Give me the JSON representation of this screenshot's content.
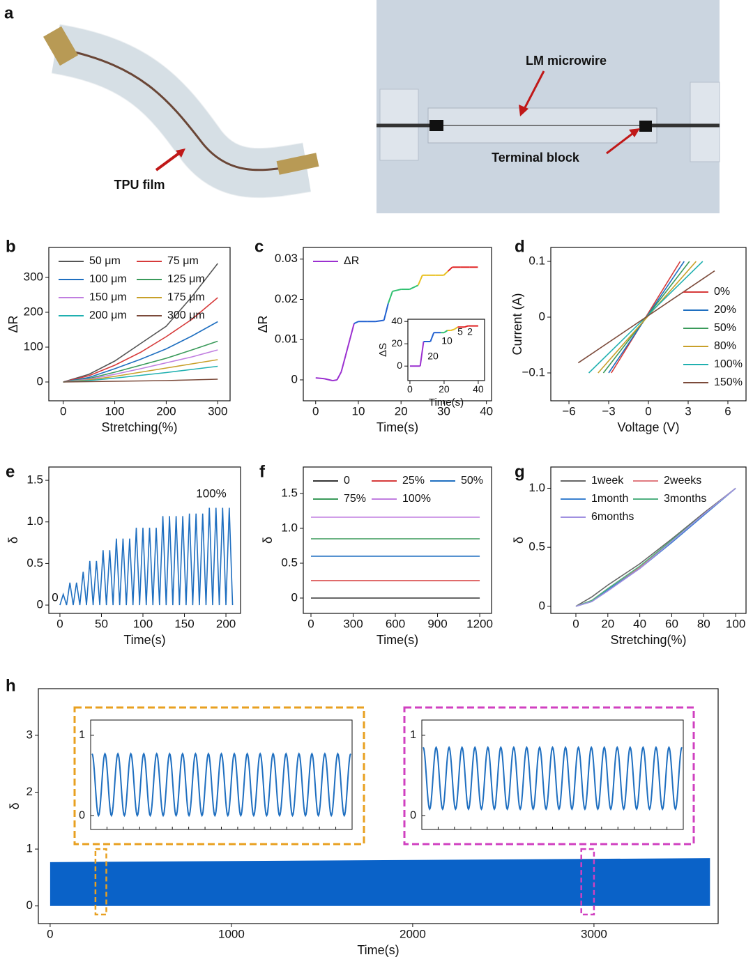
{
  "panel_a": {
    "label": "a",
    "film_label": "TPU film",
    "wire_label": "LM microwire",
    "block_label": "Terminal block"
  },
  "chart_data": [
    {
      "panel": "b",
      "type": "line",
      "xlabel": "Stretching(%)",
      "ylabel": "ΔR",
      "x": [
        0,
        50,
        100,
        150,
        200,
        250,
        300
      ],
      "xlim": [
        -28,
        324
      ],
      "ylim": [
        -54,
        386
      ],
      "xticks": [
        0,
        100,
        200,
        300
      ],
      "yticks": [
        0,
        100,
        200,
        300
      ],
      "legend": "upper left",
      "legend_columns": 2,
      "series": [
        {
          "name": "50 μm",
          "color": "#555555",
          "values": [
            0,
            22,
            60,
            110,
            160,
            245,
            340
          ]
        },
        {
          "name": "75 μm",
          "color": "#d63a3a",
          "values": [
            0,
            18,
            48,
            85,
            130,
            180,
            242
          ]
        },
        {
          "name": "100 μm",
          "color": "#1f6fc0",
          "values": [
            0,
            13,
            38,
            65,
            95,
            132,
            173
          ]
        },
        {
          "name": "125 μm",
          "color": "#3a9a5a",
          "values": [
            0,
            10,
            28,
            48,
            68,
            92,
            117
          ]
        },
        {
          "name": "150 μm",
          "color": "#c07ee0",
          "values": [
            0,
            8,
            22,
            38,
            55,
            72,
            92
          ]
        },
        {
          "name": "175 μm",
          "color": "#c8a02a",
          "values": [
            0,
            6,
            16,
            28,
            40,
            52,
            64
          ]
        },
        {
          "name": "200 μm",
          "color": "#20b0b0",
          "values": [
            0,
            4,
            11,
            19,
            27,
            36,
            45
          ]
        },
        {
          "name": "300 μm",
          "color": "#7b4a3a",
          "values": [
            0,
            1,
            2,
            3,
            4,
            6,
            8
          ]
        }
      ]
    },
    {
      "panel": "c",
      "type": "line",
      "xlabel": "Time(s)",
      "ylabel": "ΔR",
      "x": [
        0,
        2,
        4,
        5,
        6,
        7,
        8,
        9,
        10,
        12,
        14,
        16,
        17,
        18,
        20,
        22,
        24,
        25,
        26,
        28,
        30,
        31,
        32,
        34,
        36,
        38
      ],
      "xlim": [
        -2.9,
        41.2
      ],
      "ylim": [
        -0.0052,
        0.0329
      ],
      "xticks": [
        0,
        10,
        20,
        30,
        40
      ],
      "yticks": [
        0,
        0.01,
        0.02,
        0.03
      ],
      "legend": "upper left",
      "legend_columns": 1,
      "series": [
        {
          "name": "ΔR",
          "color": "#9b30d0",
          "values": [
            0.0005,
            0.0003,
            -0.0002,
            0,
            0.002,
            0.006,
            0.01,
            0.014,
            0.0145,
            0.0145,
            0.0145,
            0.0148,
            0.019,
            0.022,
            0.0225,
            0.0225,
            0.0235,
            0.026,
            0.026,
            0.026,
            0.026,
            0.027,
            0.028,
            0.028,
            0.028,
            0.028
          ],
          "colors": [
            "#9b30d0",
            "#9b30d0",
            "#9b30d0",
            "#9b30d0",
            "#9b30d0",
            "#9b30d0",
            "#9b30d0",
            "#9b30d0",
            "#2060d0",
            "#2060d0",
            "#2060d0",
            "#2060d0",
            "#2060d0",
            "#30c070",
            "#30c070",
            "#30c070",
            "#30c070",
            "#e8c020",
            "#e8c020",
            "#e8c020",
            "#e8c020",
            "#e8c020",
            "#e02020",
            "#e02020",
            "#e02020",
            "#e02020"
          ]
        }
      ],
      "inset": {
        "type": "line",
        "xlabel": "Time(s)",
        "ylabel": "ΔS",
        "x": [
          0,
          6,
          8,
          12,
          14,
          18,
          20,
          22,
          24,
          26,
          28,
          32,
          34,
          40
        ],
        "xlim": [
          -1.2,
          43.7
        ],
        "ylim": [
          -13,
          42
        ],
        "xticks": [
          0,
          20,
          40
        ],
        "yticks": [
          0,
          20,
          40
        ],
        "annotations": [
          "20",
          "10",
          "5",
          "2"
        ],
        "series": [
          {
            "color": "#9b30d0",
            "values": [
              0,
              0,
              22,
              22,
              30,
              30,
              30,
              32,
              32,
              33,
              35,
              35,
              36,
              36
            ],
            "colors": [
              "#9b30d0",
              "#9b30d0",
              "#9b30d0",
              "#2060d0",
              "#2060d0",
              "#2060d0",
              "#30c070",
              "#30c070",
              "#e8c020",
              "#e8c020",
              "#e8c020",
              "#e02020",
              "#e02020",
              "#e02020"
            ]
          }
        ]
      }
    },
    {
      "panel": "d",
      "type": "line",
      "xlabel": "Voltage (V)",
      "ylabel": "Current (A)",
      "xlim": [
        -7.37,
        7.37
      ],
      "ylim": [
        -0.15,
        0.125
      ],
      "xticks": [
        {
          "value": -6,
          "label": "−6"
        },
        {
          "value": -3,
          "label": "−3"
        },
        0,
        3,
        6
      ],
      "yticks": [
        {
          "value": -0.1,
          "label": "−0.1"
        },
        0,
        0.1
      ],
      "legend": "lower right",
      "legend_columns": 1,
      "series": [
        {
          "name": "0%",
          "color": "#d63a3a",
          "x": [
            -2.8,
            2.4
          ],
          "values": [
            -0.1,
            0.1
          ]
        },
        {
          "name": "20%",
          "color": "#1f6fc0",
          "x": [
            -3,
            2.7
          ],
          "values": [
            -0.1,
            0.1
          ]
        },
        {
          "name": "50%",
          "color": "#3a9a5a",
          "x": [
            -3.4,
            3.1
          ],
          "values": [
            -0.1,
            0.1
          ]
        },
        {
          "name": "80%",
          "color": "#c8a02a",
          "x": [
            -3.8,
            3.6
          ],
          "values": [
            -0.1,
            0.1
          ]
        },
        {
          "name": "100%",
          "color": "#20b0b0",
          "x": [
            -4.5,
            4.1
          ],
          "values": [
            -0.1,
            0.1
          ]
        },
        {
          "name": "150%",
          "color": "#7b4a3a",
          "x": [
            -5.3,
            5
          ],
          "values": [
            -0.082,
            0.083
          ]
        }
      ]
    },
    {
      "panel": "e",
      "type": "line",
      "xlabel": "Time(s)",
      "ylabel": "δ",
      "xlim": [
        -13.4,
        217.6
      ],
      "ylim": [
        -0.1,
        1.66
      ],
      "xticks": [
        0,
        50,
        100,
        150,
        200
      ],
      "yticks": [
        0,
        0.5,
        {
          "value": 1,
          "label": "1.0"
        },
        1.5
      ],
      "annotations": [
        "0",
        "100%"
      ],
      "x": [
        0,
        4,
        8,
        12,
        16,
        20,
        24,
        28,
        32,
        36,
        40,
        44,
        48,
        52,
        56,
        60,
        64,
        68,
        72,
        76,
        80,
        84,
        88,
        92,
        96,
        100,
        104,
        108,
        112,
        116,
        120,
        124,
        128,
        132,
        136,
        140,
        144,
        148,
        152,
        156,
        160,
        164,
        168,
        172,
        176,
        180,
        184,
        188,
        192,
        196,
        200,
        204,
        208
      ],
      "series": [
        {
          "color": "#1f6fc0",
          "values": [
            0,
            0.13,
            0,
            0.27,
            0,
            0.27,
            0,
            0.4,
            0,
            0.53,
            0,
            0.53,
            0,
            0.66,
            0,
            0.66,
            0,
            0.8,
            0,
            0.8,
            0,
            0.8,
            0,
            0.93,
            0,
            0.93,
            0,
            0.93,
            0,
            0.93,
            0,
            1.07,
            0,
            1.07,
            0,
            1.07,
            0,
            1.07,
            0,
            1.1,
            0,
            1.1,
            0,
            1.1,
            0,
            1.17,
            0,
            1.17,
            0,
            1.17,
            0,
            1.17,
            0
          ]
        }
      ]
    },
    {
      "panel": "f",
      "type": "line",
      "xlabel": "Time(s)",
      "ylabel": "δ",
      "x": [
        0,
        1200
      ],
      "xlim": [
        -54.5,
        1284
      ],
      "ylim": [
        -0.22,
        1.88
      ],
      "xticks": [
        0,
        300,
        600,
        900,
        1200
      ],
      "yticks": [
        0,
        0.5,
        {
          "value": 1,
          "label": "1.0"
        },
        1.5
      ],
      "legend": "upper left",
      "legend_columns": 3,
      "series": [
        {
          "name": "0",
          "color": "#333333",
          "values": [
            0,
            0
          ]
        },
        {
          "name": "25%",
          "color": "#d63a3a",
          "values": [
            0.25,
            0.25
          ]
        },
        {
          "name": "50%",
          "color": "#1f6fc0",
          "values": [
            0.6,
            0.6
          ]
        },
        {
          "name": "75%",
          "color": "#3a9a5a",
          "values": [
            0.85,
            0.85
          ]
        },
        {
          "name": "100%",
          "color": "#c07ee0",
          "values": [
            1.16,
            1.16
          ]
        }
      ]
    },
    {
      "panel": "g",
      "type": "line",
      "xlabel": "Stretching(%)",
      "ylabel": "δ",
      "x": [
        0,
        10,
        20,
        40,
        60,
        80,
        100
      ],
      "xlim": [
        -15.7,
        106.5
      ],
      "ylim": [
        -0.06,
        1.18
      ],
      "xticks": [
        0,
        20,
        40,
        60,
        80,
        100
      ],
      "yticks": [
        0,
        0.5,
        {
          "value": 1,
          "label": "1.0"
        }
      ],
      "legend": "upper left",
      "legend_columns": 2,
      "series": [
        {
          "name": "1week",
          "color": "#666666",
          "values": [
            0,
            0.08,
            0.18,
            0.36,
            0.57,
            0.79,
            1
          ]
        },
        {
          "name": "2weeks",
          "color": "#e07a80",
          "values": [
            0,
            0.05,
            0.15,
            0.33,
            0.55,
            0.78,
            1
          ]
        },
        {
          "name": "1month",
          "color": "#3a80d0",
          "values": [
            0,
            0.04,
            0.14,
            0.32,
            0.54,
            0.77,
            1
          ]
        },
        {
          "name": "3months",
          "color": "#50b080",
          "values": [
            0,
            0.05,
            0.15,
            0.34,
            0.56,
            0.78,
            1
          ]
        },
        {
          "name": "6months",
          "color": "#a090e0",
          "values": [
            0,
            0.04,
            0.13,
            0.32,
            0.55,
            0.78,
            1
          ]
        }
      ]
    },
    {
      "panel": "h",
      "type": "area",
      "xlabel": "Time(s)",
      "ylabel": "δ",
      "xlim": [
        -65,
        3685
      ],
      "ylim": [
        -0.31,
        3.82
      ],
      "xticks": [
        0,
        1000,
        2000,
        3000
      ],
      "yticks": [
        0,
        1,
        2,
        3
      ],
      "series": [
        {
          "color": "#0a62c8",
          "x": [
            0,
            3640
          ],
          "lower": [
            0,
            0
          ],
          "upper": [
            0.77,
            0.84
          ]
        }
      ],
      "insets": [
        {
          "color": "#e8a020",
          "x": [
            250,
            310
          ],
          "y": [
            -0.15,
            1
          ],
          "ylim": [
            -0.173,
            1.19
          ],
          "yticks": [
            0,
            1
          ],
          "cycles": 20,
          "min": 0,
          "max": 0.77
        },
        {
          "color": "#d040c0",
          "x": [
            2930,
            3000
          ],
          "y": [
            -0.15,
            1
          ],
          "ylim": [
            -0.173,
            1.19
          ],
          "yticks": [
            0,
            1
          ],
          "cycles": 20,
          "min": 0.08,
          "max": 0.85
        }
      ]
    }
  ]
}
